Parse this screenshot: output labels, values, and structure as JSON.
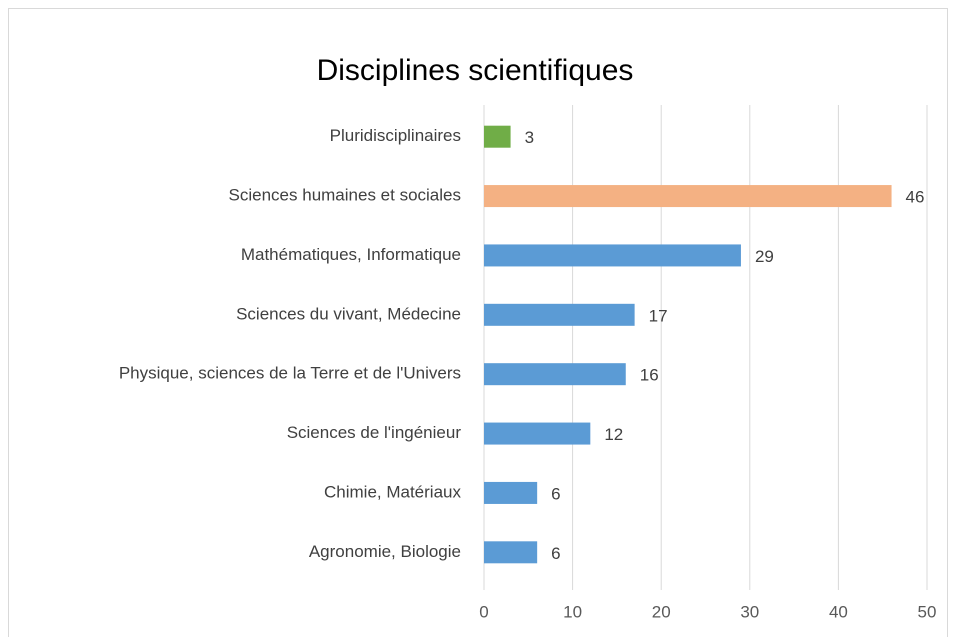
{
  "chart_data": {
    "type": "bar",
    "orientation": "horizontal",
    "title": "Disciplines scientifiques",
    "categories": [
      "Pluridisciplinaires",
      "Sciences humaines et sociales",
      "Mathématiques, Informatique",
      "Sciences du vivant, Médecine",
      "Physique, sciences de la Terre et de l'Univers",
      "Sciences de l'ingénieur",
      "Chimie, Matériaux",
      "Agronomie, Biologie"
    ],
    "values": [
      3,
      46,
      29,
      17,
      16,
      12,
      6,
      6
    ],
    "colors": [
      "#70ad47",
      "#f4b183",
      "#5b9bd5",
      "#5b9bd5",
      "#5b9bd5",
      "#5b9bd5",
      "#5b9bd5",
      "#5b9bd5"
    ],
    "xlim": [
      0,
      50
    ],
    "xticks": [
      0,
      10,
      20,
      30,
      40,
      50
    ],
    "grid": true
  }
}
